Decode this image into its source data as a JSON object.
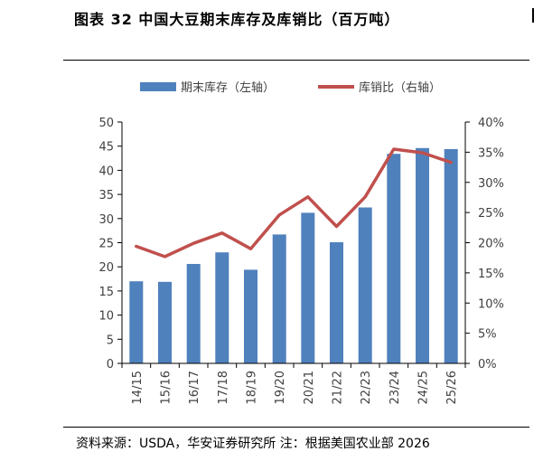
{
  "title": "图表 32  中国大豆期末库存及库销比（百万吨）",
  "source": "资料来源：USDA，华安证券研究所  注：根据美国农业部 2026",
  "colors": {
    "bar": "#4f81bd",
    "line": "#c0504d",
    "axis": "#000000",
    "text": "#404040"
  },
  "chart_data": {
    "type": "bar",
    "categories": [
      "14/15",
      "15/16",
      "16/17",
      "17/18",
      "18/19",
      "19/20",
      "20/21",
      "21/22",
      "22/23",
      "23/24",
      "24/25",
      "25/26"
    ],
    "series": [
      {
        "name": "期末库存（左轴）",
        "type": "bar",
        "axis": "left",
        "values": [
          17.0,
          16.9,
          20.6,
          23.0,
          19.4,
          26.7,
          31.2,
          25.1,
          32.3,
          43.4,
          44.6,
          44.4
        ]
      },
      {
        "name": "库销比（右轴）",
        "type": "line",
        "axis": "right",
        "values": [
          19.4,
          17.7,
          19.9,
          21.6,
          19.0,
          24.6,
          27.6,
          22.7,
          27.6,
          35.5,
          34.9,
          33.3
        ]
      }
    ],
    "ylim_left": [
      0,
      50
    ],
    "ylim_right": [
      0,
      40
    ],
    "left_ticks": [
      "0",
      "5",
      "10",
      "15",
      "20",
      "25",
      "30",
      "35",
      "40",
      "45",
      "50"
    ],
    "right_ticks": [
      "0%",
      "5%",
      "10%",
      "15%",
      "20%",
      "25%",
      "30%",
      "35%",
      "40%"
    ],
    "legend_position": "top",
    "grid": false
  }
}
